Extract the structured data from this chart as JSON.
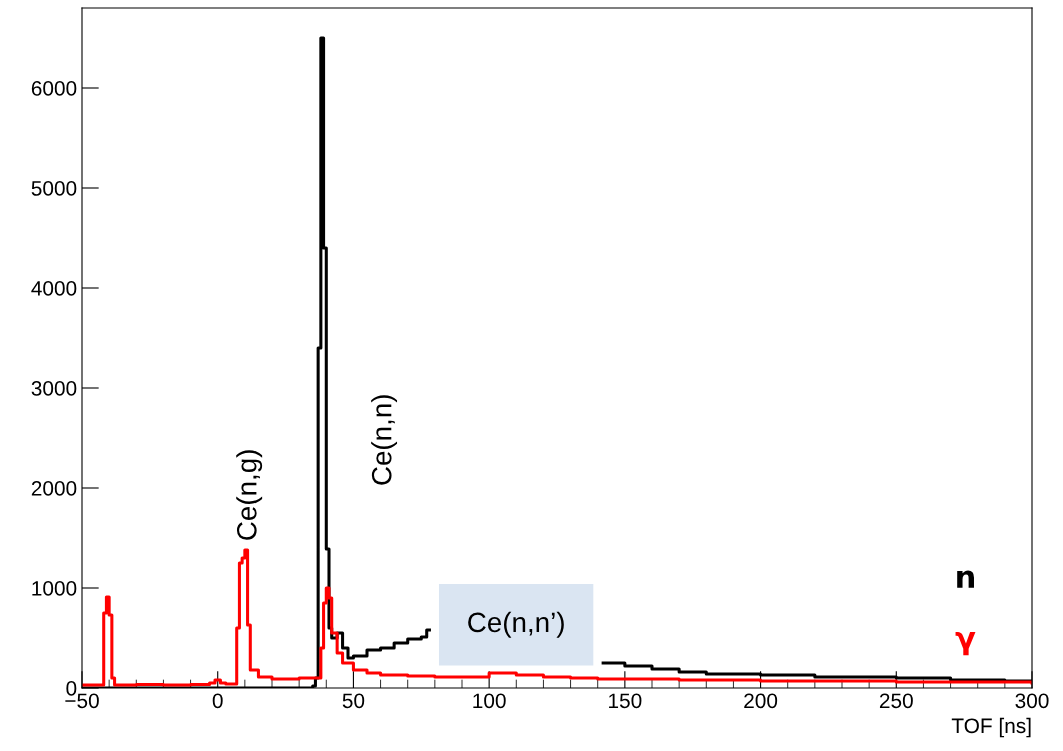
{
  "chart_data": {
    "type": "step",
    "xlabel": "TOF [ns]",
    "xlim": [
      -50,
      300
    ],
    "xticks": [
      -50,
      0,
      50,
      100,
      150,
      200,
      250,
      300
    ],
    "ylim": [
      0,
      6800
    ],
    "yticks": [
      0,
      1000,
      2000,
      3000,
      4000,
      5000,
      6000
    ],
    "grid": false,
    "legend": false,
    "series": [
      {
        "name": "n",
        "color": "#000000",
        "x": [
          -50,
          30,
          35,
          36,
          37,
          38,
          39,
          40,
          41,
          42,
          44,
          46,
          48,
          50,
          55,
          60,
          65,
          70,
          75,
          77,
          78,
          142,
          150,
          160,
          170,
          180,
          200,
          220,
          250,
          270,
          290,
          300
        ],
        "values": [
          0,
          0,
          20,
          100,
          3400,
          6500,
          4400,
          1390,
          600,
          500,
          550,
          400,
          300,
          320,
          380,
          400,
          450,
          490,
          510,
          580,
          null,
          250,
          220,
          190,
          160,
          140,
          130,
          110,
          100,
          80,
          70,
          70
        ]
      },
      {
        "name": "γ",
        "color": "#ff0000",
        "x": [
          -50,
          -42,
          -41,
          -40,
          -39,
          -38,
          -30,
          -20,
          -10,
          -3,
          -1,
          1,
          3,
          7,
          8,
          9,
          10,
          11,
          12,
          15,
          20,
          30,
          37,
          38,
          39,
          40,
          41,
          42,
          44,
          46,
          50,
          55,
          60,
          70,
          80,
          90,
          100,
          110,
          120,
          130,
          140,
          150,
          170,
          200,
          250,
          300
        ],
        "values": [
          30,
          750,
          910,
          730,
          100,
          30,
          35,
          30,
          35,
          50,
          80,
          50,
          40,
          600,
          1250,
          1300,
          1380,
          630,
          180,
          110,
          90,
          100,
          100,
          400,
          850,
          1000,
          900,
          550,
          350,
          250,
          180,
          150,
          130,
          120,
          110,
          110,
          150,
          130,
          110,
          100,
          90,
          90,
          80,
          70,
          60,
          50
        ]
      }
    ],
    "annotations": [
      "Ce(n,g)",
      "Ce(n,n)",
      "Ce(n,n’)"
    ]
  }
}
